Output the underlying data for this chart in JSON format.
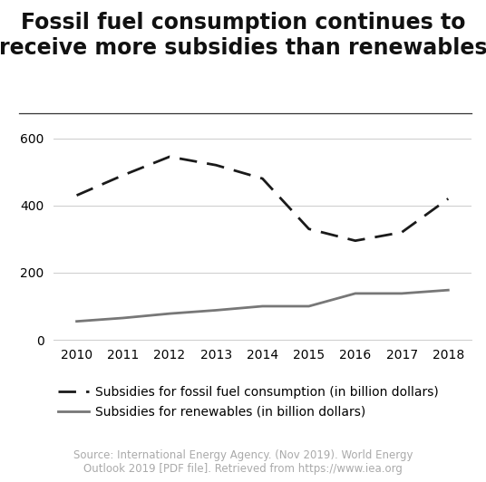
{
  "title": "Fossil fuel consumption continues to\nreceive more subsidies than renewables",
  "years": [
    2010,
    2011,
    2012,
    2013,
    2014,
    2015,
    2016,
    2017,
    2018
  ],
  "fossil_fuel": [
    430,
    490,
    545,
    520,
    480,
    330,
    295,
    320,
    420
  ],
  "renewables": [
    55,
    65,
    78,
    88,
    100,
    100,
    138,
    138,
    148
  ],
  "fossil_label": "Subsidies for fossil fuel consumption (in billion dollars)",
  "renewables_label": "Subsidies for renewables (in billion dollars)",
  "fossil_color": "#1a1a1a",
  "renewables_color": "#777777",
  "ylim": [
    0,
    660
  ],
  "yticks": [
    0,
    200,
    400,
    600
  ],
  "source_text": "Source: International Energy Agency. (Nov 2019). World Energy\nOutlook 2019 [PDF file]. Retrieved from https://www.iea.org",
  "background_color": "#ffffff",
  "title_fontsize": 17,
  "tick_fontsize": 10,
  "legend_fontsize": 10,
  "source_fontsize": 8.5,
  "grid_color": "#cccccc",
  "separator_color": "#333333"
}
